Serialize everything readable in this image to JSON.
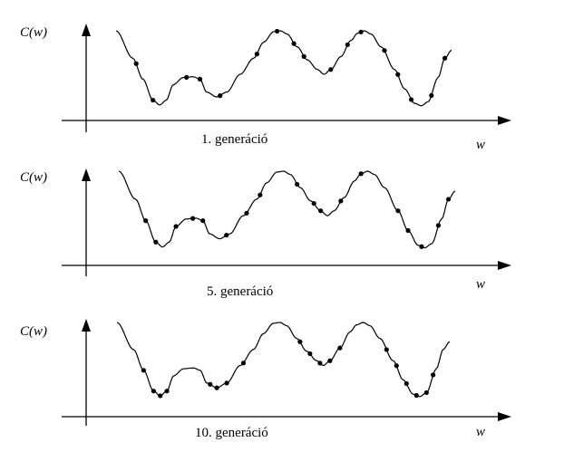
{
  "panels": [
    {
      "id": "gen1",
      "y_label": "C(w)",
      "x_label": "w",
      "caption": "1. generáció",
      "point_positions": [
        0.06,
        0.11,
        0.21,
        0.25,
        0.31,
        0.42,
        0.48,
        0.53,
        0.56,
        0.64,
        0.69,
        0.73,
        0.8,
        0.84,
        0.88,
        0.94,
        0.98
      ]
    },
    {
      "id": "gen5",
      "y_label": "C(w)",
      "x_label": "w",
      "caption": "5. generáció",
      "point_positions": [
        0.08,
        0.11,
        0.17,
        0.22,
        0.25,
        0.32,
        0.38,
        0.42,
        0.53,
        0.58,
        0.6,
        0.66,
        0.72,
        0.83,
        0.86,
        0.9,
        0.95,
        0.98
      ]
    },
    {
      "id": "gen10",
      "y_label": "C(w)",
      "x_label": "w",
      "caption": "10. generáció",
      "point_positions": [
        0.08,
        0.11,
        0.13,
        0.15,
        0.28,
        0.3,
        0.33,
        0.38,
        0.55,
        0.58,
        0.61,
        0.64,
        0.67,
        0.81,
        0.84,
        0.87,
        0.9,
        0.93,
        0.95
      ]
    }
  ]
}
